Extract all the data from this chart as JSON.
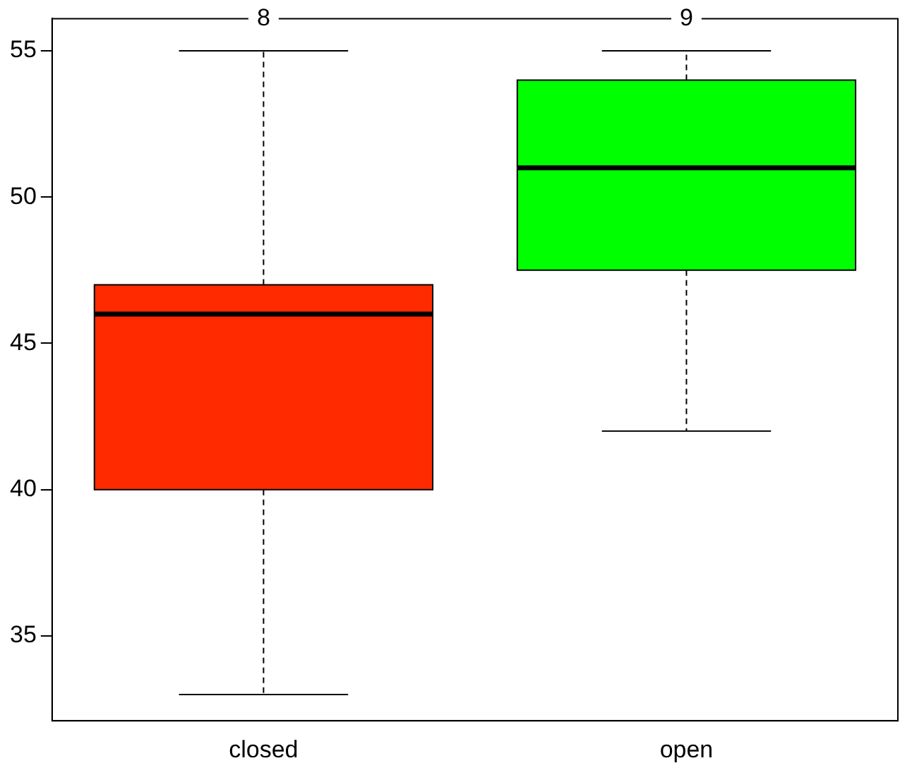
{
  "chart_data": {
    "type": "box",
    "categories": [
      "closed",
      "open"
    ],
    "boxes": [
      {
        "low": 33,
        "q1": 40,
        "median": 46,
        "q3": 47,
        "high": 55
      },
      {
        "low": 42,
        "q1": 47.5,
        "median": 51,
        "q3": 54,
        "high": 55
      }
    ],
    "colors": [
      "#ff2a00",
      "#00ff00"
    ],
    "ylim": [
      32.1,
      56.1
    ],
    "yticks": [
      35,
      40,
      45,
      50,
      55
    ],
    "annotations": [
      {
        "text": "8",
        "x": "closed"
      },
      {
        "text": "9",
        "x": "open"
      }
    ],
    "line_style": "dashed",
    "grid": false,
    "legend": false
  }
}
